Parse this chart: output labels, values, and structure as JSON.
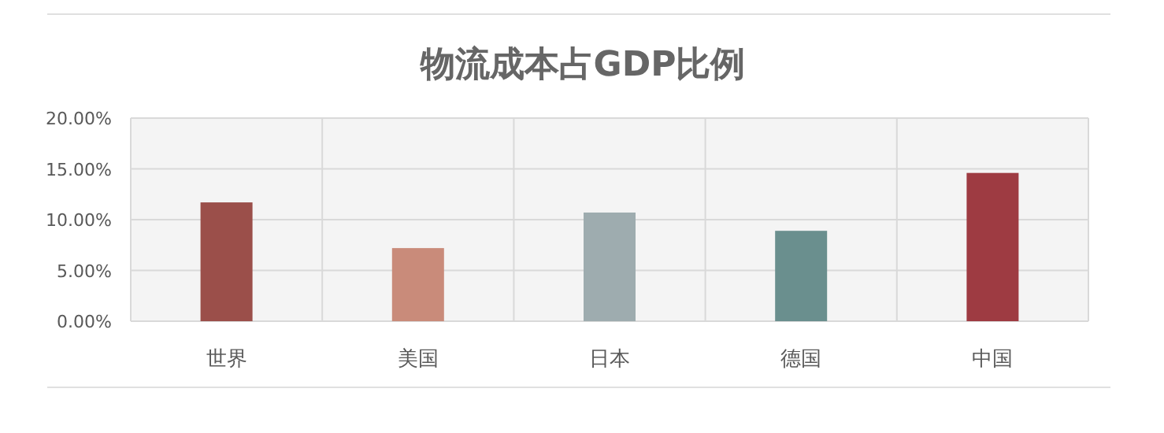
{
  "chart_data": {
    "type": "bar",
    "title": "物流成本占GDP比例",
    "categories": [
      "世界",
      "美国",
      "日本",
      "德国",
      "中国"
    ],
    "values": [
      11.7,
      7.2,
      10.7,
      8.9,
      14.6
    ],
    "colors": [
      "#9b4f4a",
      "#c98b7a",
      "#9eacaf",
      "#6a8f8e",
      "#9e3b42"
    ],
    "ylim": [
      0,
      20
    ],
    "yticks": [
      {
        "value": 0,
        "label": "0.00%"
      },
      {
        "value": 5,
        "label": "5.00%"
      },
      {
        "value": 10,
        "label": "10.00%"
      },
      {
        "value": 15,
        "label": "15.00%"
      },
      {
        "value": 20,
        "label": "20.00%"
      }
    ],
    "grid": true
  }
}
